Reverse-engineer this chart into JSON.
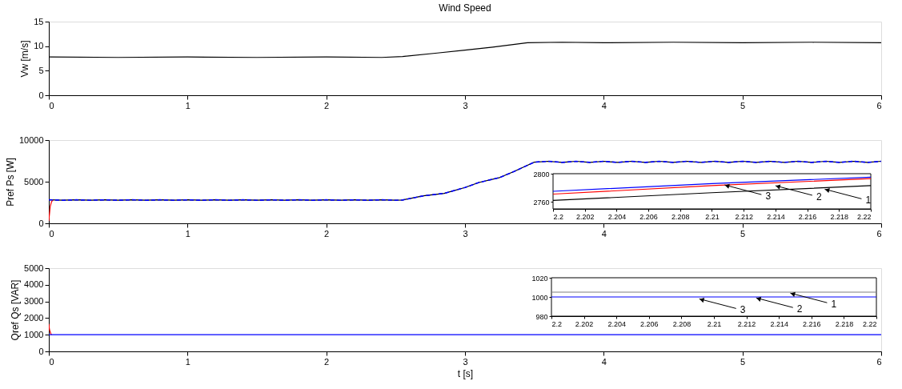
{
  "chart_data": [
    {
      "type": "line",
      "title": "Wind Speed",
      "ylabel": "Vw [m/s]",
      "xlim": [
        0,
        6
      ],
      "xticks": [
        0,
        1,
        2,
        3,
        4,
        5,
        6
      ],
      "ylim": [
        0,
        15
      ],
      "yticks": [
        0,
        5,
        10,
        15
      ],
      "grid": false,
      "series": [
        {
          "color": "#000000",
          "x": [
            0,
            0.5,
            1,
            1.5,
            2,
            2.4,
            2.55,
            2.8,
            3,
            3.2,
            3.45,
            3.7,
            4,
            4.5,
            5,
            5.5,
            6
          ],
          "values": [
            7.8,
            7.7,
            7.8,
            7.7,
            7.8,
            7.7,
            7.9,
            8.6,
            9.2,
            9.8,
            10.7,
            10.8,
            10.7,
            10.8,
            10.7,
            10.8,
            10.7
          ]
        }
      ]
    },
    {
      "type": "line",
      "ylabel": "Pref  Ps [W]",
      "xlim": [
        0,
        6
      ],
      "xticks": [
        0,
        1,
        2,
        3,
        4,
        5,
        6
      ],
      "ylim": [
        0,
        10000
      ],
      "yticks": [
        0,
        5000,
        10000
      ],
      "grid": false,
      "x": [
        0,
        0.1,
        0.2,
        0.3,
        0.4,
        0.5,
        0.6,
        0.7,
        0.8,
        0.9,
        1.0,
        1.1,
        1.2,
        1.3,
        1.4,
        1.5,
        1.6,
        1.7,
        1.8,
        1.9,
        2.0,
        2.1,
        2.2,
        2.3,
        2.4,
        2.5,
        2.55,
        2.7,
        2.85,
        3.0,
        3.1,
        3.25,
        3.35,
        3.5,
        3.6,
        3.7,
        3.8,
        3.9,
        4.0,
        4.1,
        4.2,
        4.3,
        4.4,
        4.5,
        4.6,
        4.7,
        4.8,
        4.9,
        5.0,
        5.1,
        5.2,
        5.3,
        5.4,
        5.5,
        5.6,
        5.7,
        5.8,
        5.9,
        6.0
      ],
      "series": [
        {
          "color": "#000000",
          "values": [
            2820,
            2770,
            2820,
            2770,
            2820,
            2770,
            2820,
            2770,
            2820,
            2770,
            2820,
            2770,
            2820,
            2770,
            2820,
            2770,
            2820,
            2770,
            2820,
            2770,
            2820,
            2770,
            2820,
            2770,
            2820,
            2770,
            2800,
            3300,
            3600,
            4300,
            4900,
            5500,
            6200,
            7350,
            7450,
            7320,
            7450,
            7320,
            7450,
            7320,
            7450,
            7320,
            7450,
            7320,
            7450,
            7320,
            7450,
            7320,
            7450,
            7320,
            7450,
            7320,
            7450,
            7320,
            7450,
            7320,
            7450,
            7320,
            7450
          ]
        },
        {
          "color": "#ff0000",
          "x": [
            0,
            0.01,
            0.02,
            0.03
          ],
          "values": [
            300,
            2000,
            2600,
            2800
          ]
        },
        {
          "color": "#0000ff",
          "line_style": "dashed",
          "values": [
            2820,
            2770,
            2820,
            2770,
            2820,
            2770,
            2820,
            2770,
            2820,
            2770,
            2820,
            2770,
            2820,
            2770,
            2820,
            2770,
            2820,
            2770,
            2820,
            2770,
            2820,
            2770,
            2820,
            2770,
            2820,
            2770,
            2800,
            3300,
            3600,
            4300,
            4900,
            5500,
            6200,
            7350,
            7450,
            7320,
            7450,
            7320,
            7450,
            7320,
            7450,
            7320,
            7450,
            7320,
            7450,
            7320,
            7450,
            7320,
            7450,
            7320,
            7450,
            7320,
            7450,
            7320,
            7450,
            7320,
            7450,
            7320,
            7450
          ]
        }
      ]
    },
    {
      "type": "line",
      "xlim": [
        2.2,
        2.22
      ],
      "xticks": [
        2.2,
        2.202,
        2.204,
        2.206,
        2.208,
        2.21,
        2.212,
        2.214,
        2.216,
        2.218,
        2.22
      ],
      "ylim": [
        2750,
        2800
      ],
      "yticks": [
        2760,
        2800
      ],
      "grid": false,
      "x": [
        2.2,
        2.21,
        2.22
      ],
      "series": [
        {
          "color": "#000000",
          "values": [
            2762,
            2773,
            2783
          ]
        },
        {
          "color": "#ff0000",
          "values": [
            2771,
            2783,
            2793
          ]
        },
        {
          "color": "#0000ff",
          "values": [
            2775,
            2786,
            2795
          ]
        }
      ],
      "annotations": [
        {
          "text": "3",
          "x": 2.2108,
          "y": 2784
        },
        {
          "text": "2",
          "x": 2.214,
          "y": 2783
        },
        {
          "text": "1",
          "x": 2.2171,
          "y": 2778
        }
      ]
    },
    {
      "type": "line",
      "ylabel": "Qref  Qs [VAR]",
      "xlabel": "t [s]",
      "xlim": [
        0,
        6
      ],
      "xticks": [
        0,
        1,
        2,
        3,
        4,
        5,
        6
      ],
      "ylim": [
        0,
        5000
      ],
      "yticks": [
        0,
        1000,
        2000,
        3000,
        4000,
        5000
      ],
      "grid": false,
      "series": [
        {
          "color": "#ff0000",
          "x": [
            0,
            0.005,
            0.015,
            0.02
          ],
          "values": [
            1650,
            1300,
            1050,
            1000
          ]
        },
        {
          "color": "#0000ff",
          "x": [
            0,
            6
          ],
          "values": [
            1000,
            1000
          ]
        }
      ]
    },
    {
      "type": "line",
      "xlim": [
        2.2,
        2.22
      ],
      "xticks": [
        2.2,
        2.202,
        2.204,
        2.206,
        2.208,
        2.21,
        2.212,
        2.214,
        2.216,
        2.218,
        2.22
      ],
      "ylim": [
        980,
        1020
      ],
      "yticks": [
        980,
        1000,
        1020
      ],
      "grid": false,
      "x": [
        2.2,
        2.22
      ],
      "series": [
        {
          "color": "#808080",
          "values": [
            1005,
            1005
          ]
        },
        {
          "color": "#0000ff",
          "values": [
            1000,
            1000
          ]
        }
      ],
      "annotations": [
        {
          "text": "3",
          "x": 2.2091,
          "y": 998
        },
        {
          "text": "2",
          "x": 2.2126,
          "y": 999
        },
        {
          "text": "1",
          "x": 2.2147,
          "y": 1004
        }
      ]
    }
  ]
}
